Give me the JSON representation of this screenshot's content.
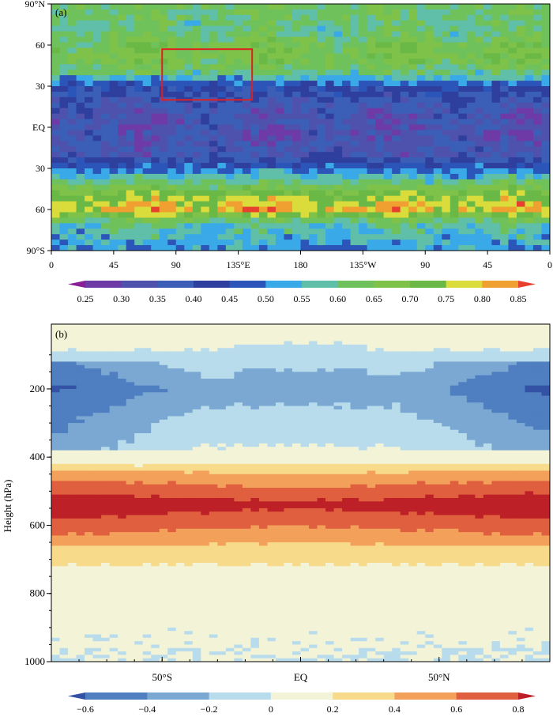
{
  "chart_data": [
    {
      "type": "heatmap",
      "panel_label": "(a)",
      "title": "",
      "xlabel": "",
      "ylabel": "",
      "x_ticks": [
        "0",
        "45",
        "90",
        "135°E",
        "180",
        "135°W",
        "90",
        "45",
        "0"
      ],
      "y_ticks": [
        "90°N",
        "60",
        "30",
        "EQ",
        "30",
        "60",
        "90°S"
      ],
      "xlim": [
        0,
        360
      ],
      "ylim": [
        -90,
        90
      ],
      "colorbar": {
        "labels": [
          "0.25",
          "0.30",
          "0.35",
          "0.40",
          "0.45",
          "0.50",
          "0.55",
          "0.60",
          "0.65",
          "0.70",
          "0.75",
          "0.80",
          "0.85"
        ],
        "levels": [
          0.25,
          0.3,
          0.35,
          0.4,
          0.45,
          0.5,
          0.55,
          0.6,
          0.65,
          0.7,
          0.75,
          0.8,
          0.85
        ],
        "colors": [
          "#8a1e96",
          "#6e3aa6",
          "#4f52ad",
          "#3b5fb6",
          "#2f3f9e",
          "#2b55b8",
          "#3aa9e8",
          "#5fbfa9",
          "#6fc25b",
          "#7ec24a",
          "#6ab845",
          "#d9dc3a",
          "#f0a030",
          "#e8402e"
        ]
      },
      "lat_profile": [
        {
          "lat": 85,
          "value": 0.62
        },
        {
          "lat": 70,
          "value": 0.6
        },
        {
          "lat": 60,
          "value": 0.66
        },
        {
          "lat": 50,
          "value": 0.67
        },
        {
          "lat": 40,
          "value": 0.6
        },
        {
          "lat": 30,
          "value": 0.45
        },
        {
          "lat": 20,
          "value": 0.38
        },
        {
          "lat": 10,
          "value": 0.34
        },
        {
          "lat": 0,
          "value": 0.33
        },
        {
          "lat": -10,
          "value": 0.34
        },
        {
          "lat": -20,
          "value": 0.36
        },
        {
          "lat": -30,
          "value": 0.48
        },
        {
          "lat": -40,
          "value": 0.6
        },
        {
          "lat": -50,
          "value": 0.74
        },
        {
          "lat": -60,
          "value": 0.8
        },
        {
          "lat": -70,
          "value": 0.58
        },
        {
          "lat": -85,
          "value": 0.52
        }
      ],
      "highlight_box": {
        "lon": [
          80,
          145
        ],
        "lat": [
          20,
          57
        ],
        "color": "#e02020"
      }
    },
    {
      "type": "heatmap",
      "panel_label": "(b)",
      "title": "",
      "xlabel": "",
      "ylabel": "Height (hPa)",
      "x_ticks": [
        "50°S",
        "EQ",
        "50°N"
      ],
      "x_tick_values": [
        -50,
        0,
        50
      ],
      "xlim": [
        -90,
        90
      ],
      "y_ticks": [
        "200",
        "400",
        "600",
        "800",
        "1000"
      ],
      "y_tick_values": [
        200,
        400,
        600,
        800,
        1000
      ],
      "ylim": [
        1000,
        10
      ],
      "colorbar": {
        "labels": [
          "−0.6",
          "−0.4",
          "−0.2",
          "0",
          "0.2",
          "0.4",
          "0.6",
          "0.8"
        ],
        "levels": [
          -0.6,
          -0.4,
          -0.2,
          0,
          0.2,
          0.4,
          0.6,
          0.8
        ],
        "colors": [
          "#3352a6",
          "#4f7fc0",
          "#7aa8d2",
          "#b9dcec",
          "#f3f3d8",
          "#f7da8a",
          "#f3a05a",
          "#df5f3e",
          "#bd2127"
        ]
      },
      "profile": [
        {
          "p": 50,
          "value": 0.1
        },
        {
          "p": 200,
          "value": -0.3
        },
        {
          "p": 300,
          "value": -0.1
        },
        {
          "p": 400,
          "value": 0.05
        },
        {
          "p": 460,
          "value": 0.45
        },
        {
          "p": 500,
          "value": 0.65
        },
        {
          "p": 540,
          "value": 0.85
        },
        {
          "p": 600,
          "value": 0.6
        },
        {
          "p": 660,
          "value": 0.35
        },
        {
          "p": 750,
          "value": 0.1
        },
        {
          "p": 900,
          "value": 0.02
        },
        {
          "p": 1000,
          "value": 0.0
        }
      ]
    }
  ]
}
